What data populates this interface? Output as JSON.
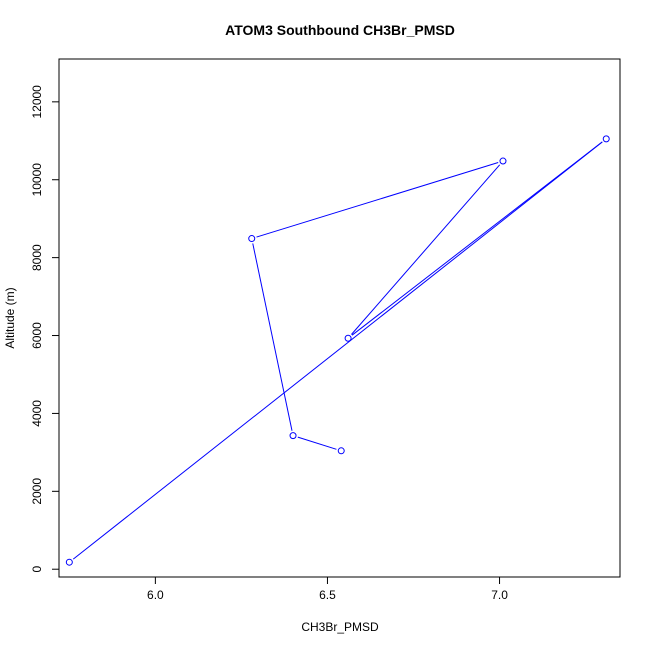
{
  "chart_data": {
    "type": "line",
    "title": "ATOM3 Southbound CH3Br_PMSD",
    "xlabel": "CH3Br_PMSD",
    "ylabel": "Altitude (m)",
    "xlim": [
      5.72,
      7.35
    ],
    "ylim": [
      -200,
      13100
    ],
    "xticks": [
      6.0,
      6.5,
      7.0
    ],
    "xtick_labels": [
      "6.0",
      "6.5",
      "7.0"
    ],
    "yticks": [
      0,
      2000,
      4000,
      6000,
      8000,
      10000,
      12000
    ],
    "ytick_labels": [
      "0",
      "2000",
      "4000",
      "6000",
      "8000",
      "10000",
      "12000"
    ],
    "grid": false,
    "legend": "none",
    "series": [
      {
        "color": "#0000ff",
        "marker": "open-circle",
        "x": [
          5.75,
          7.31,
          6.56,
          7.01,
          6.28,
          6.4,
          6.54
        ],
        "y": [
          180,
          11050,
          5930,
          10480,
          8490,
          3430,
          3040
        ]
      }
    ]
  }
}
